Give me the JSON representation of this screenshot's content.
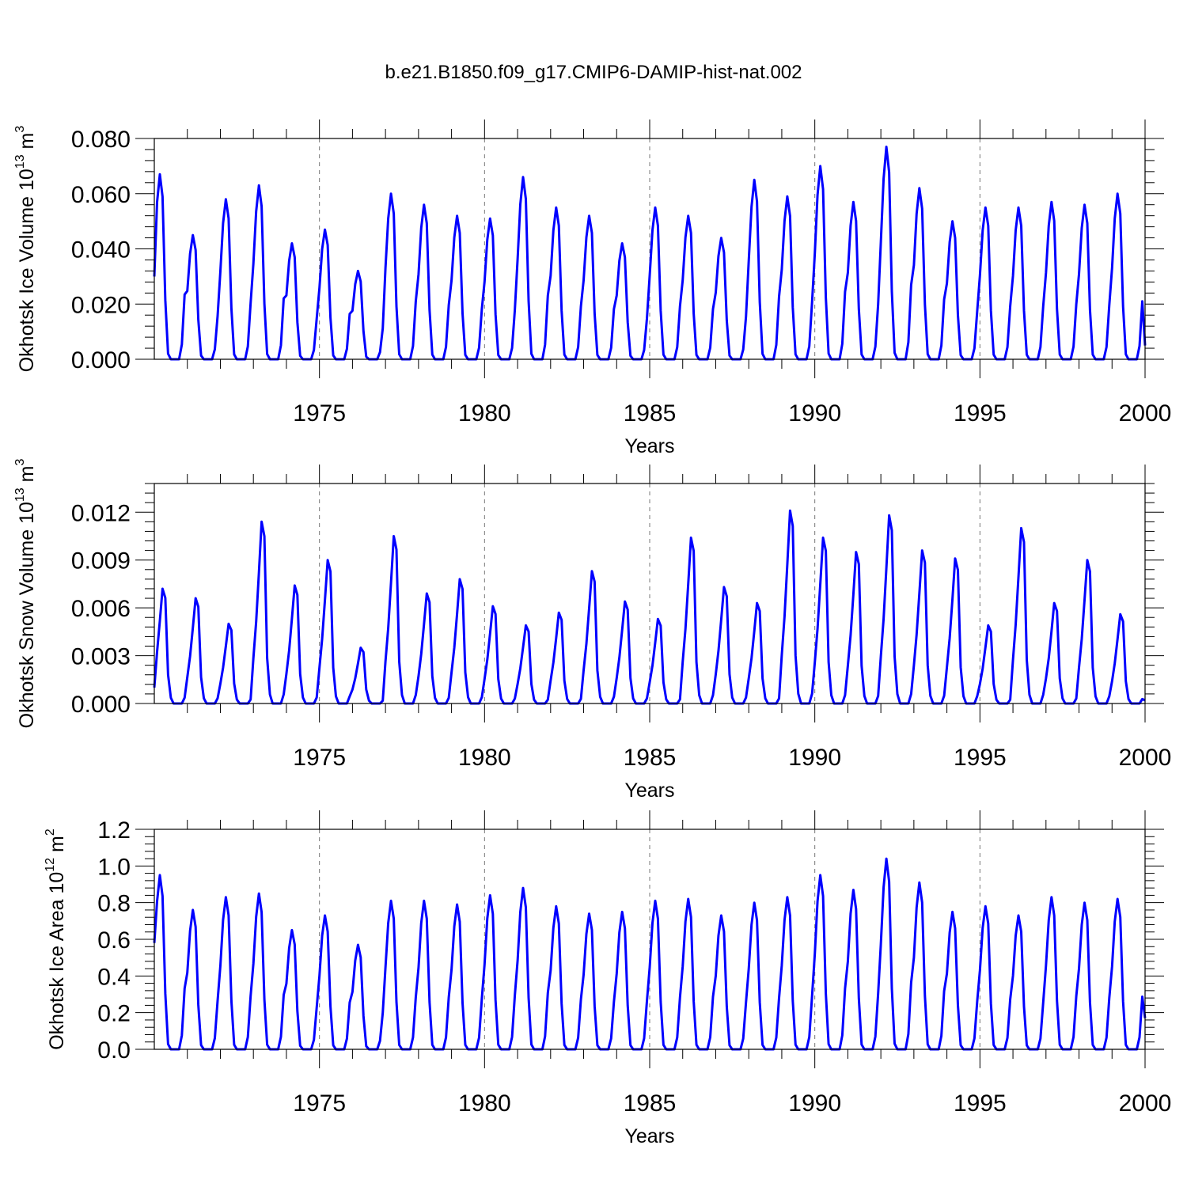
{
  "title": "b.e21.B1850.f09_g17.CMIP6-DAMIP-hist-nat.002",
  "series_color": "#0000ff",
  "chart_data": [
    {
      "type": "line",
      "ylabel": "Okhotsk Ice Volume 10",
      "ylabel_sup": "13",
      "ylabel_unit": " m",
      "ylabel_unit_sup": "3",
      "xlabel": "Years",
      "xlim": [
        1970,
        2000
      ],
      "ylim": [
        0,
        0.08
      ],
      "yticks": [
        "0.000",
        "0.020",
        "0.040",
        "0.060",
        "0.080"
      ],
      "xticks": [
        "1975",
        "1980",
        "1985",
        "1990",
        "1995",
        "2000"
      ],
      "grid": "vertical dashed at major x ticks",
      "peak_month_index": 2,
      "winter_start_value": 0.03,
      "annual_peaks": [
        0.067,
        0.045,
        0.058,
        0.063,
        0.042,
        0.047,
        0.032,
        0.06,
        0.056,
        0.052,
        0.051,
        0.066,
        0.055,
        0.052,
        0.042,
        0.055,
        0.052,
        0.044,
        0.065,
        0.059,
        0.07,
        0.057,
        0.077,
        0.062,
        0.05,
        0.055,
        0.055,
        0.057,
        0.056,
        0.06
      ],
      "end_value": 0.005
    },
    {
      "type": "line",
      "ylabel": "Okhotsk Snow Volume 10",
      "ylabel_sup": "13",
      "ylabel_unit": " m",
      "ylabel_unit_sup": "3",
      "xlabel": "Years",
      "xlim": [
        1970,
        2000
      ],
      "ylim": [
        0,
        0.0138
      ],
      "yticks": [
        "0.000",
        "0.003",
        "0.006",
        "0.009",
        "0.012"
      ],
      "xticks": [
        "1975",
        "1980",
        "1985",
        "1990",
        "1995",
        "2000"
      ],
      "grid": "vertical dashed at major x ticks",
      "peak_month_index": 3,
      "winter_start_value": 0.001,
      "annual_peaks": [
        0.0072,
        0.0066,
        0.005,
        0.0114,
        0.0074,
        0.009,
        0.0035,
        0.0105,
        0.0069,
        0.0078,
        0.0061,
        0.0049,
        0.0057,
        0.0083,
        0.0064,
        0.0053,
        0.0104,
        0.0073,
        0.0063,
        0.0121,
        0.0104,
        0.0095,
        0.0118,
        0.0096,
        0.0091,
        0.0049,
        0.011,
        0.0063,
        0.009,
        0.0056
      ],
      "end_value": 0.0002
    },
    {
      "type": "line",
      "ylabel": "Okhotsk Ice Area 10",
      "ylabel_sup": "12",
      "ylabel_unit": " m",
      "ylabel_unit_sup": "2",
      "xlabel": "Years",
      "xlim": [
        1970,
        2000
      ],
      "ylim": [
        0,
        1.2
      ],
      "yticks": [
        "0.0",
        "0.2",
        "0.4",
        "0.6",
        "0.8",
        "1.0",
        "1.2"
      ],
      "xticks": [
        "1975",
        "1980",
        "1985",
        "1990",
        "1995",
        "2000"
      ],
      "grid": "vertical dashed at major x ticks",
      "peak_month_index": 2,
      "winter_start_value": 0.58,
      "annual_peaks": [
        0.95,
        0.76,
        0.83,
        0.85,
        0.65,
        0.73,
        0.57,
        0.81,
        0.81,
        0.79,
        0.84,
        0.88,
        0.78,
        0.74,
        0.75,
        0.81,
        0.82,
        0.73,
        0.8,
        0.83,
        0.95,
        0.87,
        1.04,
        0.91,
        0.75,
        0.78,
        0.73,
        0.83,
        0.8,
        0.82
      ],
      "end_value": 0.17
    }
  ]
}
